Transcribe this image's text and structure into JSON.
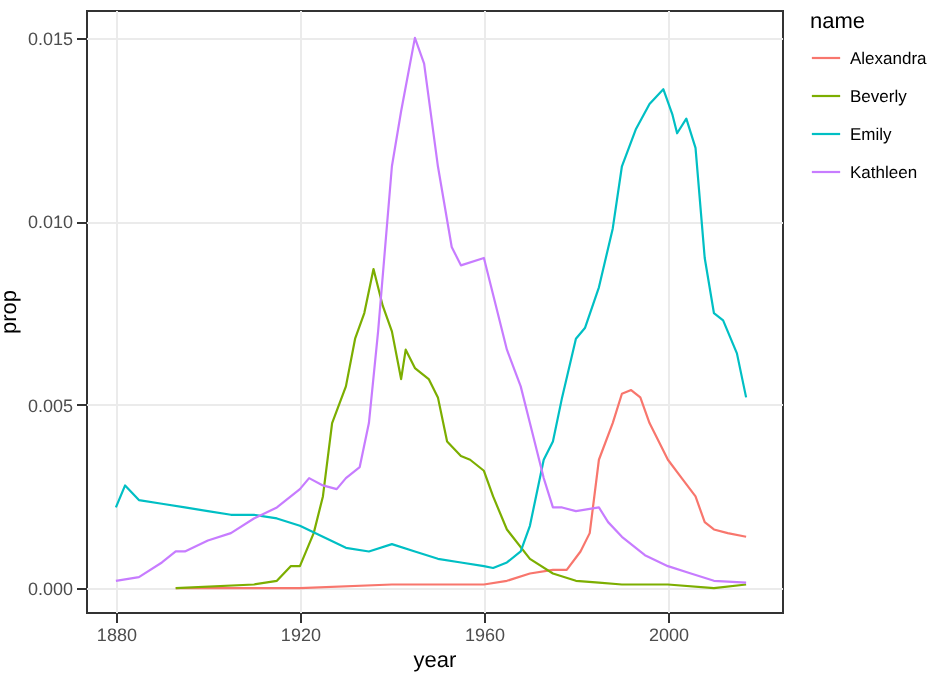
{
  "chart_data": {
    "type": "line",
    "xlabel": "year",
    "ylabel": "prop",
    "legend_title": "name",
    "xlim": [
      1873.5,
      2024.8
    ],
    "ylim": [
      -0.00065,
      0.01576
    ],
    "xticks": [
      1880,
      1920,
      1960,
      2000
    ],
    "yticks": [
      {
        "value": 0,
        "label": "0.000"
      },
      {
        "value": 0.005,
        "label": "0.005"
      },
      {
        "value": 0.01,
        "label": "0.010"
      },
      {
        "value": 0.015,
        "label": "0.015"
      }
    ],
    "grid": true,
    "legend": "right",
    "series": [
      {
        "name": "Alexandra",
        "color": "#f8766d",
        "x": [
          1893,
          1920,
          1940,
          1960,
          1965,
          1970,
          1975,
          1978,
          1981,
          1983,
          1985,
          1988,
          1990,
          1992,
          1994,
          1996,
          2000,
          2003,
          2006,
          2008,
          2010,
          2013,
          2017
        ],
        "values": [
          0.0,
          0.0,
          0.0001,
          0.0001,
          0.0002,
          0.0004,
          0.0005,
          0.0005,
          0.001,
          0.0015,
          0.0035,
          0.0045,
          0.0053,
          0.0054,
          0.0052,
          0.0045,
          0.0035,
          0.003,
          0.0025,
          0.0018,
          0.0016,
          0.0015,
          0.0014
        ]
      },
      {
        "name": "Beverly",
        "color": "#7cae00",
        "x": [
          1893,
          1910,
          1915,
          1918,
          1920,
          1923,
          1925,
          1927,
          1930,
          1932,
          1934,
          1936,
          1938,
          1940,
          1942,
          1943,
          1945,
          1948,
          1950,
          1952,
          1955,
          1957,
          1960,
          1962,
          1965,
          1970,
          1975,
          1980,
          1985,
          1990,
          2000,
          2010,
          2017
        ],
        "values": [
          0.0,
          0.0001,
          0.0002,
          0.0006,
          0.0006,
          0.0015,
          0.0025,
          0.0045,
          0.0055,
          0.0068,
          0.0075,
          0.0087,
          0.0077,
          0.007,
          0.0057,
          0.0065,
          0.006,
          0.0057,
          0.0052,
          0.004,
          0.0036,
          0.0035,
          0.0032,
          0.0025,
          0.0016,
          0.0008,
          0.0004,
          0.0002,
          0.00015,
          0.0001,
          0.0001,
          0.0,
          0.0001
        ]
      },
      {
        "name": "Emily",
        "color": "#00bfc4",
        "x": [
          1880,
          1882,
          1885,
          1890,
          1895,
          1900,
          1905,
          1910,
          1915,
          1920,
          1925,
          1930,
          1935,
          1940,
          1945,
          1950,
          1955,
          1960,
          1962,
          1965,
          1968,
          1970,
          1973,
          1975,
          1977,
          1980,
          1982,
          1985,
          1988,
          1990,
          1993,
          1996,
          1999,
          2001,
          2002,
          2004,
          2006,
          2008,
          2010,
          2012,
          2015,
          2017
        ],
        "values": [
          0.0022,
          0.0028,
          0.0024,
          0.0023,
          0.0022,
          0.0021,
          0.002,
          0.002,
          0.0019,
          0.0017,
          0.0014,
          0.0011,
          0.001,
          0.0012,
          0.001,
          0.0008,
          0.0007,
          0.0006,
          0.00055,
          0.0007,
          0.001,
          0.0017,
          0.0035,
          0.004,
          0.0052,
          0.0068,
          0.0071,
          0.0082,
          0.0098,
          0.0115,
          0.0125,
          0.0132,
          0.0136,
          0.0129,
          0.0124,
          0.0128,
          0.012,
          0.009,
          0.0075,
          0.0073,
          0.0064,
          0.0052
        ]
      },
      {
        "name": "Kathleen",
        "color": "#c77cff",
        "x": [
          1880,
          1885,
          1890,
          1893,
          1895,
          1900,
          1905,
          1910,
          1915,
          1920,
          1922,
          1925,
          1928,
          1930,
          1933,
          1935,
          1937,
          1940,
          1942,
          1945,
          1947,
          1950,
          1953,
          1955,
          1960,
          1963,
          1965,
          1968,
          1970,
          1973,
          1975,
          1977,
          1980,
          1985,
          1987,
          1990,
          1995,
          2000,
          2005,
          2010,
          2017
        ],
        "values": [
          0.0002,
          0.0003,
          0.0007,
          0.001,
          0.001,
          0.0013,
          0.0015,
          0.0019,
          0.0022,
          0.0027,
          0.003,
          0.0028,
          0.0027,
          0.003,
          0.0033,
          0.0045,
          0.007,
          0.0115,
          0.013,
          0.015,
          0.0143,
          0.0115,
          0.0093,
          0.0088,
          0.009,
          0.0075,
          0.0065,
          0.0055,
          0.0045,
          0.003,
          0.0022,
          0.0022,
          0.0021,
          0.0022,
          0.0018,
          0.0014,
          0.0009,
          0.0006,
          0.0004,
          0.0002,
          0.00015
        ]
      }
    ]
  }
}
